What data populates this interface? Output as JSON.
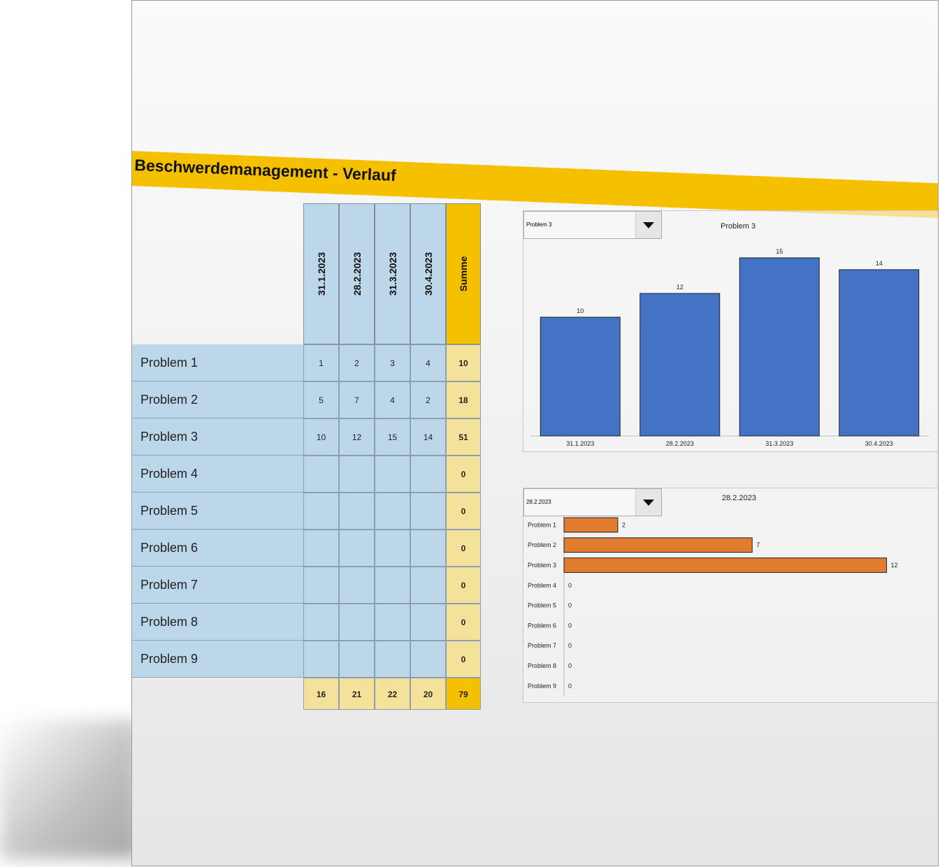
{
  "title": "Beschwerdemanagement - Verlauf",
  "table": {
    "columns": [
      "31.1.2023",
      "28.2.2023",
      "31.3.2023",
      "30.4.2023"
    ],
    "sum_label": "Summe",
    "rows": [
      {
        "label": "Problem 1",
        "values": [
          "1",
          "2",
          "3",
          "4"
        ],
        "sum": "10"
      },
      {
        "label": "Problem 2",
        "values": [
          "5",
          "7",
          "4",
          "2"
        ],
        "sum": "18"
      },
      {
        "label": "Problem 3",
        "values": [
          "10",
          "12",
          "15",
          "14"
        ],
        "sum": "51"
      },
      {
        "label": "Problem 4",
        "values": [
          "",
          "",
          "",
          ""
        ],
        "sum": "0"
      },
      {
        "label": "Problem 5",
        "values": [
          "",
          "",
          "",
          ""
        ],
        "sum": "0"
      },
      {
        "label": "Problem 6",
        "values": [
          "",
          "",
          "",
          ""
        ],
        "sum": "0"
      },
      {
        "label": "Problem 7",
        "values": [
          "",
          "",
          "",
          ""
        ],
        "sum": "0"
      },
      {
        "label": "Problem 8",
        "values": [
          "",
          "",
          "",
          ""
        ],
        "sum": "0"
      },
      {
        "label": "Problem 9",
        "values": [
          "",
          "",
          "",
          ""
        ],
        "sum": "0"
      }
    ],
    "totals": [
      "16",
      "21",
      "22",
      "20"
    ],
    "grand_total": "79"
  },
  "chart_data": [
    {
      "type": "bar",
      "title": "Problem 3",
      "dropdown_value": "Problem 3",
      "categories": [
        "31.1.2023",
        "28.2.2023",
        "31.3.2023",
        "30.4.2023"
      ],
      "values": [
        10,
        12,
        15,
        14
      ],
      "color": "#4472c4",
      "ylim": [
        0,
        16
      ]
    },
    {
      "type": "bar",
      "orientation": "horizontal",
      "title": "28.2.2023",
      "dropdown_value": "28.2.2023",
      "categories": [
        "Problem 1",
        "Problem 2",
        "Problem 3",
        "Problem 4",
        "Problem 5",
        "Problem 6",
        "Problem 7",
        "Problem 8",
        "Problem 9"
      ],
      "values": [
        2,
        7,
        12,
        0,
        0,
        0,
        0,
        0,
        0
      ],
      "color": "#e07b30",
      "xlim": [
        0,
        13
      ]
    }
  ]
}
